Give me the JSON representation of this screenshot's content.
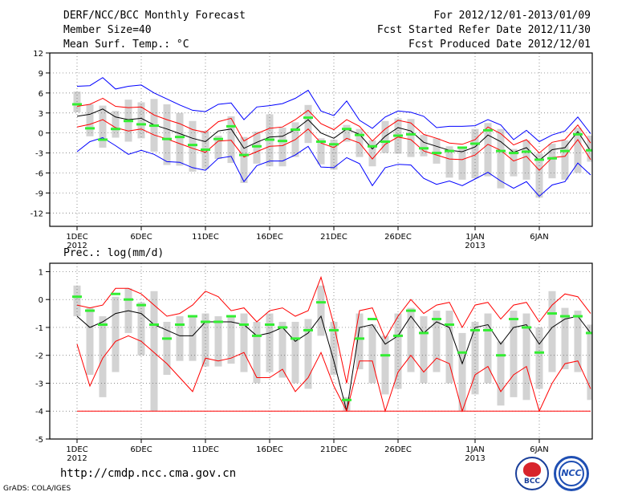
{
  "header": {
    "title": "DERF/NCC/BCC Monthly Forecast",
    "member_size": "Member Size=40",
    "variable": "Mean Surf. Temp.: °C",
    "period": "For 2012/12/01-2013/01/09",
    "started": "Fcst Started Refer Date 2012/11/30",
    "produced": "Fcst Produced Date 2012/12/01"
  },
  "footer": {
    "url": "http://cmdp.ncc.cma.gov.cn",
    "credit": "GrADS: COLA/IGES",
    "logo_bcc": "BCC",
    "logo_ncc": "NCC"
  },
  "colors": {
    "mean": "#000000",
    "spread": "#ff0000",
    "envelope": "#0000ff",
    "observed": "#33ee33",
    "box": "#d3d3d3"
  },
  "chart_data": [
    {
      "type": "line",
      "title": "Mean Surf. Temp.: °C",
      "ylim": [
        -14,
        12
      ],
      "yticks": [
        12,
        9,
        6,
        3,
        0,
        -3,
        -6,
        -9,
        -12
      ],
      "x_days": 40,
      "xticks": [
        {
          "day": 1,
          "label": "1DEC",
          "sub": "2012"
        },
        {
          "day": 6,
          "label": "6DEC",
          "sub": ""
        },
        {
          "day": 11,
          "label": "11DEC",
          "sub": ""
        },
        {
          "day": 16,
          "label": "16DEC",
          "sub": ""
        },
        {
          "day": 21,
          "label": "21DEC",
          "sub": ""
        },
        {
          "day": 26,
          "label": "26DEC",
          "sub": ""
        },
        {
          "day": 32,
          "label": "1JAN",
          "sub": "2013"
        },
        {
          "day": 37,
          "label": "6JAN",
          "sub": ""
        }
      ],
      "series": [
        {
          "name": "ensemble-mean",
          "values": [
            2.5,
            2.8,
            3.6,
            2.4,
            2.0,
            2.2,
            1.2,
            0.6,
            -0.1,
            -0.8,
            -1.3,
            0.3,
            0.6,
            -2.3,
            -1.4,
            -0.6,
            -0.5,
            0.5,
            2.0,
            0.0,
            -0.8,
            0.6,
            -0.2,
            -2.4,
            -0.5,
            0.8,
            0.3,
            -1.4,
            -2.0,
            -2.6,
            -2.8,
            -2.1,
            -0.3,
            -1.3,
            -2.9,
            -2.2,
            -4.1,
            -2.5,
            -2.2,
            0.2,
            -2.7
          ]
        },
        {
          "name": "spread-upper",
          "values": [
            4.0,
            4.3,
            5.2,
            4.0,
            3.8,
            3.9,
            2.7,
            2.0,
            1.4,
            0.5,
            0.1,
            1.7,
            2.2,
            -1.2,
            -0.1,
            0.7,
            0.9,
            2.0,
            3.4,
            1.4,
            0.5,
            2.0,
            1.0,
            -1.2,
            0.6,
            1.9,
            1.5,
            -0.2,
            -0.8,
            -1.5,
            -1.7,
            -1.0,
            0.9,
            -0.1,
            -1.8,
            -1.0,
            -3.0,
            -1.4,
            -1.0,
            1.2,
            -1.5
          ]
        },
        {
          "name": "spread-lower",
          "values": [
            0.9,
            1.3,
            2.0,
            0.8,
            0.3,
            0.6,
            -0.3,
            -0.9,
            -1.6,
            -2.3,
            -2.9,
            -1.2,
            -1.1,
            -3.6,
            -2.8,
            -2.0,
            -1.9,
            -1.0,
            0.6,
            -1.5,
            -2.2,
            -0.8,
            -1.5,
            -3.9,
            -1.7,
            -0.6,
            -1.0,
            -2.7,
            -3.3,
            -3.9,
            -4.0,
            -3.3,
            -1.7,
            -2.6,
            -4.2,
            -3.5,
            -5.6,
            -3.7,
            -3.5,
            -1.0,
            -4.0
          ]
        },
        {
          "name": "envelope-upper",
          "values": [
            7.0,
            7.1,
            8.3,
            6.6,
            7.0,
            7.2,
            6.0,
            5.1,
            4.2,
            3.4,
            3.2,
            4.3,
            4.5,
            2.0,
            3.9,
            4.1,
            4.4,
            5.2,
            6.4,
            3.3,
            2.6,
            4.8,
            1.9,
            0.7,
            2.4,
            3.3,
            3.1,
            2.5,
            0.8,
            1.0,
            1.0,
            1.1,
            2.0,
            1.2,
            -1.0,
            0.4,
            -1.3,
            -0.3,
            0.3,
            2.4,
            -0.1
          ]
        },
        {
          "name": "envelope-lower",
          "values": [
            -2.8,
            -1.3,
            -0.7,
            -1.9,
            -3.2,
            -2.6,
            -3.2,
            -4.3,
            -4.4,
            -5.2,
            -5.6,
            -3.8,
            -3.5,
            -7.3,
            -4.9,
            -4.2,
            -4.2,
            -3.3,
            -2.0,
            -5.1,
            -5.2,
            -3.7,
            -4.6,
            -7.9,
            -5.2,
            -4.7,
            -4.8,
            -6.8,
            -7.7,
            -7.2,
            -7.9,
            -6.9,
            -5.9,
            -7.2,
            -8.3,
            -7.3,
            -9.5,
            -7.8,
            -7.3,
            -4.5,
            -6.3
          ]
        },
        {
          "name": "observed",
          "values": [
            4.3,
            0.7,
            -1.0,
            0.6,
            1.8,
            1.3,
            1.1,
            -0.9,
            -0.6,
            -1.8,
            -2.5,
            -0.9,
            1.0,
            -3.3,
            -2.0,
            -1.0,
            -1.2,
            0.5,
            2.3,
            -1.3,
            -1.7,
            0.6,
            -0.3,
            -2.0,
            -1.3,
            -0.4,
            -0.2,
            -2.3,
            -3.0,
            -2.7,
            -2.2,
            -1.6,
            0.4,
            -2.7,
            -3.0,
            -2.8,
            -4.0,
            -3.8,
            -2.7,
            -0.2,
            -2.6
          ]
        }
      ],
      "box_ranges": [
        [
          3.1,
          6.2
        ],
        [
          -0.5,
          4.3
        ],
        [
          -2.2,
          4.1
        ],
        [
          -0.7,
          3.3
        ],
        [
          -1.3,
          5.0
        ],
        [
          -0.8,
          4.6
        ],
        [
          -2.8,
          5.1
        ],
        [
          -4.8,
          4.3
        ],
        [
          -4.9,
          3.0
        ],
        [
          -5.8,
          1.8
        ],
        [
          -5.4,
          0.3
        ],
        [
          -3.9,
          -0.4
        ],
        [
          -4.5,
          2.5
        ],
        [
          -7.5,
          -0.6
        ],
        [
          -4.6,
          0.2
        ],
        [
          -5.0,
          2.8
        ],
        [
          -5.0,
          0.8
        ],
        [
          -3.6,
          1.6
        ],
        [
          -1.5,
          4.2
        ],
        [
          -4.7,
          -0.8
        ],
        [
          -5.5,
          -1.0
        ],
        [
          -1.3,
          1.2
        ],
        [
          -3.6,
          0.6
        ],
        [
          -5.0,
          -1.1
        ],
        [
          -3.0,
          1.8
        ],
        [
          -3.1,
          2.2
        ],
        [
          -3.6,
          2.1
        ],
        [
          -3.5,
          -0.3
        ],
        [
          -4.6,
          -0.8
        ],
        [
          -6.7,
          -2.0
        ],
        [
          -7.0,
          -2.3
        ],
        [
          -6.8,
          0.6
        ],
        [
          -6.5,
          1.5
        ],
        [
          -8.3,
          0.6
        ],
        [
          -6.5,
          -2.4
        ],
        [
          -7.0,
          -1.1
        ],
        [
          -9.7,
          -3.1
        ],
        [
          -6.8,
          -1.6
        ],
        [
          -7.0,
          -1.1
        ],
        [
          -6.0,
          0.8
        ],
        [
          -4.3,
          -0.4
        ]
      ]
    },
    {
      "type": "line",
      "title": "Prec.: log(mm/d)",
      "ylim": [
        -5,
        1.3
      ],
      "yticks": [
        1,
        0,
        -1,
        -2,
        -3,
        -4,
        -5
      ],
      "x_days": 40,
      "xticks": [
        {
          "day": 1,
          "label": "1DEC",
          "sub": "2012"
        },
        {
          "day": 6,
          "label": "6DEC",
          "sub": ""
        },
        {
          "day": 11,
          "label": "11DEC",
          "sub": ""
        },
        {
          "day": 16,
          "label": "16DEC",
          "sub": ""
        },
        {
          "day": 21,
          "label": "21DEC",
          "sub": ""
        },
        {
          "day": 26,
          "label": "26DEC",
          "sub": ""
        },
        {
          "day": 32,
          "label": "1JAN",
          "sub": "2013"
        },
        {
          "day": 37,
          "label": "6JAN",
          "sub": ""
        }
      ],
      "baseline": -4,
      "series": [
        {
          "name": "ensemble-mean",
          "values": [
            -0.6,
            -1.0,
            -0.8,
            -0.5,
            -0.4,
            -0.5,
            -0.9,
            -1.1,
            -1.3,
            -1.3,
            -0.8,
            -0.8,
            -0.8,
            -0.9,
            -1.3,
            -1.2,
            -1.0,
            -1.5,
            -1.2,
            -0.6,
            -2.2,
            -4.0,
            -1.0,
            -0.9,
            -1.6,
            -1.3,
            -0.6,
            -1.2,
            -0.8,
            -1.0,
            -2.3,
            -1.0,
            -0.9,
            -1.6,
            -1.0,
            -0.9,
            -1.6,
            -1.0,
            -0.7,
            -0.6,
            -1.2
          ]
        },
        {
          "name": "spread-upper",
          "values": [
            -0.2,
            -0.3,
            -0.2,
            0.4,
            0.4,
            0.2,
            -0.2,
            -0.6,
            -0.5,
            -0.2,
            0.3,
            0.1,
            -0.4,
            -0.3,
            -0.8,
            -0.4,
            -0.3,
            -0.6,
            -0.4,
            0.8,
            -0.9,
            -3.0,
            -0.4,
            -0.3,
            -1.4,
            -0.6,
            0.0,
            -0.5,
            -0.2,
            -0.1,
            -1.0,
            -0.2,
            -0.1,
            -0.7,
            -0.2,
            -0.1,
            -0.8,
            -0.2,
            0.2,
            0.1,
            -0.5
          ]
        },
        {
          "name": "spread-lower",
          "values": [
            -1.6,
            -3.1,
            -2.1,
            -1.5,
            -1.3,
            -1.5,
            -1.9,
            -2.3,
            -2.8,
            -3.3,
            -2.1,
            -2.2,
            -2.1,
            -1.9,
            -2.8,
            -2.8,
            -2.5,
            -3.3,
            -2.8,
            -1.9,
            -3.1,
            -4.0,
            -2.2,
            -2.2,
            -4.0,
            -2.6,
            -2.0,
            -2.6,
            -2.1,
            -2.3,
            -4.0,
            -2.7,
            -2.4,
            -3.3,
            -2.7,
            -2.4,
            -4.0,
            -3.0,
            -2.3,
            -2.2,
            -3.2
          ]
        },
        {
          "name": "observed",
          "values": [
            0.1,
            -0.4,
            -0.9,
            0.2,
            0.0,
            -0.2,
            -0.9,
            -1.4,
            -0.9,
            -0.6,
            -0.8,
            -0.8,
            -0.6,
            -0.9,
            -1.3,
            -0.9,
            -1.0,
            -1.4,
            -1.1,
            -0.1,
            -1.1,
            -3.6,
            -1.4,
            -0.7,
            -2.0,
            -1.3,
            -0.4,
            -1.2,
            -0.7,
            -0.9,
            -1.9,
            -1.1,
            -1.1,
            -2.0,
            -0.7,
            -1.0,
            -1.9,
            -0.5,
            -0.6,
            -0.6,
            -1.2
          ]
        }
      ],
      "box_ranges": [
        [
          -0.6,
          0.5
        ],
        [
          -2.7,
          -0.3
        ],
        [
          -3.5,
          -0.6
        ],
        [
          -2.6,
          0.1
        ],
        [
          -1.2,
          0.4
        ],
        [
          -2.0,
          -0.1
        ],
        [
          -4.0,
          0.3
        ],
        [
          -2.7,
          -0.8
        ],
        [
          -2.2,
          -0.6
        ],
        [
          -2.2,
          -0.6
        ],
        [
          -2.4,
          -0.5
        ],
        [
          -2.4,
          -0.6
        ],
        [
          -2.3,
          -0.6
        ],
        [
          -2.6,
          -0.5
        ],
        [
          -3.0,
          -0.8
        ],
        [
          -2.6,
          -0.5
        ],
        [
          -2.8,
          -0.8
        ],
        [
          -3.0,
          -0.8
        ],
        [
          -3.2,
          -0.7
        ],
        [
          -1.3,
          0.5
        ],
        [
          -2.7,
          -0.8
        ],
        [
          -4.0,
          -3.5
        ],
        [
          -2.5,
          -0.5
        ],
        [
          -3.0,
          -0.9
        ],
        [
          -3.4,
          -1.3
        ],
        [
          -3.2,
          -0.5
        ],
        [
          -2.6,
          -0.3
        ],
        [
          -3.0,
          -0.6
        ],
        [
          -2.6,
          -0.4
        ],
        [
          -3.0,
          -0.4
        ],
        [
          -4.0,
          -1.2
        ],
        [
          -3.4,
          -0.8
        ],
        [
          -3.0,
          -0.5
        ],
        [
          -3.8,
          -1.5
        ],
        [
          -3.5,
          -0.4
        ],
        [
          -3.6,
          -0.5
        ],
        [
          -3.2,
          -1.0
        ],
        [
          -2.6,
          0.3
        ],
        [
          -2.5,
          -0.3
        ],
        [
          -2.6,
          -0.4
        ],
        [
          -3.6,
          -0.9
        ]
      ]
    }
  ]
}
